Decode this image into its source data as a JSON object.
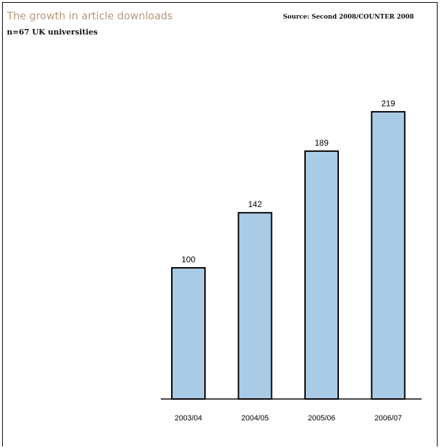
{
  "header": {
    "title": "The growth in article downloads",
    "subtitle": "n=67 UK universities",
    "source": "Source: Second 2008/COUNTER 2008"
  },
  "colors": {
    "bar_fill": "#aacbe6",
    "title": "#b8977a"
  },
  "chart_data": {
    "type": "bar",
    "title": "The growth in article downloads",
    "subtitle": "n=67 UK universities",
    "source": "Source: Second 2008/COUNTER 2008",
    "categories": [
      "2003/04",
      "2004/05",
      "2005/06",
      "2006/07"
    ],
    "values": [
      100,
      142,
      189,
      219
    ],
    "data_labels": [
      "100",
      "142",
      "189",
      "219"
    ],
    "xlabel": "",
    "ylabel": "",
    "ylim": [
      0,
      250
    ],
    "grid": false,
    "legend": "none"
  }
}
